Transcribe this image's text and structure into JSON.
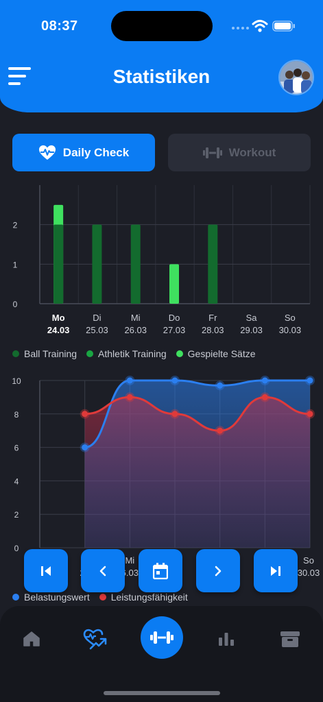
{
  "status_bar": {
    "time": "08:37"
  },
  "header": {
    "title": "Statistiken"
  },
  "tabs": [
    {
      "label": "Daily Check",
      "active": true,
      "icon": "heart-pulse-icon"
    },
    {
      "label": "Workout",
      "active": false,
      "icon": "dumbbell-icon"
    }
  ],
  "bar_chart_days": [
    {
      "day": "Mo",
      "date": "24.03",
      "bold": true
    },
    {
      "day": "Di",
      "date": "25.03"
    },
    {
      "day": "Mi",
      "date": "26.03"
    },
    {
      "day": "Do",
      "date": "27.03"
    },
    {
      "day": "Fr",
      "date": "28.03"
    },
    {
      "day": "Sa",
      "date": "29.03"
    },
    {
      "day": "So",
      "date": "30.03"
    }
  ],
  "line_chart_labels": [
    {
      "day": "",
      "date": ""
    },
    {
      "day": "",
      "date": "25"
    },
    {
      "day": "Mi",
      "date": "6.03"
    },
    {
      "day": "",
      "date": "3"
    },
    {
      "day": "",
      "date": ""
    },
    {
      "day": "",
      "date": ""
    },
    {
      "day": "So",
      "date": "30.03"
    }
  ],
  "colors": {
    "primary": "#0b7cf3",
    "ball_training": "#136b2e",
    "athletik_training": "#19a542",
    "gespielte_saetze": "#3fe05f",
    "belastungswert": "#2b7ff0",
    "leistungsfaehigkeit": "#e03a3a"
  },
  "chart_data": [
    {
      "type": "bar",
      "categories": [
        "Mo 24.03",
        "Di 25.03",
        "Mi 26.03",
        "Do 27.03",
        "Fr 28.03",
        "Sa 29.03",
        "So 30.03"
      ],
      "yticks": [
        "0",
        "1",
        "2"
      ],
      "ylim": [
        0,
        3
      ],
      "series": [
        {
          "name": "Ball Training",
          "values": [
            2,
            2,
            2,
            0,
            2,
            0,
            0
          ]
        },
        {
          "name": "Athletik Training",
          "values": [
            0,
            0,
            0,
            0,
            0,
            0,
            0
          ]
        },
        {
          "name": "Gespielte Sätze",
          "values": [
            2.5,
            0,
            0,
            1,
            0,
            0,
            0
          ]
        }
      ],
      "legend": "bottom-left",
      "grid": true
    },
    {
      "type": "area",
      "x": [
        "Mo 24.03",
        "Di 25.03",
        "Mi 26.03",
        "Do 27.03",
        "Fr 28.03",
        "Sa 29.03",
        "So 30.03"
      ],
      "yticks": [
        "0",
        "2",
        "4",
        "6",
        "8",
        "10"
      ],
      "ylim": [
        0,
        10
      ],
      "series": [
        {
          "name": "Belastungswert",
          "values": [
            null,
            6,
            10,
            10,
            9.7,
            10,
            10
          ]
        },
        {
          "name": "Leistungsfähigkeit",
          "values": [
            null,
            8,
            9,
            8,
            7,
            9,
            8
          ]
        }
      ],
      "legend": "bottom-left",
      "grid": true
    }
  ],
  "nav_buttons": [
    "first-page-icon",
    "previous-icon",
    "calendar-icon",
    "next-icon",
    "last-page-icon"
  ],
  "bottom_nav": [
    "home-icon",
    "heart-trend-icon",
    "dumbbell-icon",
    "bar-chart-icon",
    "archive-icon"
  ]
}
